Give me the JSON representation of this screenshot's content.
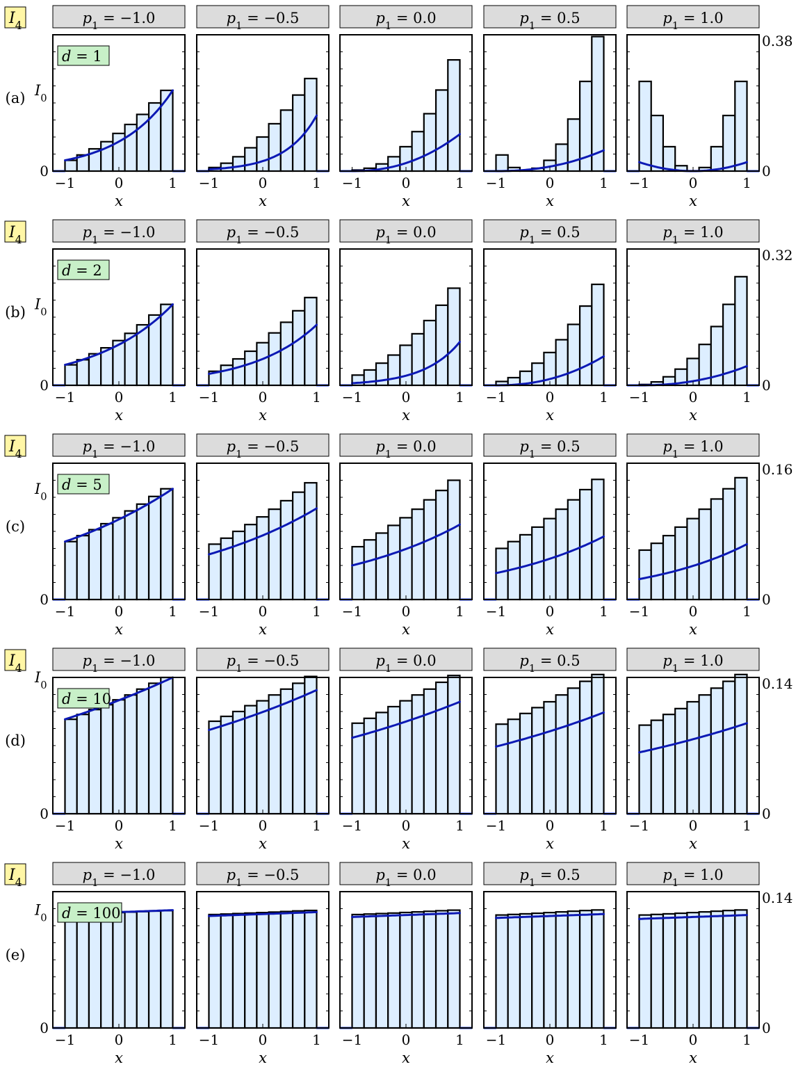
{
  "chart_data": {
    "type": "bar",
    "panel_tag": "I4",
    "strip_prefix": "p1",
    "columns": [
      {
        "p1": "−1.0"
      },
      {
        "p1": "−0.5"
      },
      {
        "p1": "0.0"
      },
      {
        "p1": "0.5"
      },
      {
        "p1": "1.0"
      }
    ],
    "xlabel": "x",
    "xticks": [
      "−1",
      "0",
      "1"
    ],
    "ylabel": "I0",
    "bin_centers": [
      -0.889,
      -0.667,
      -0.444,
      -0.222,
      0.0,
      0.222,
      0.444,
      0.667,
      0.889
    ],
    "rows": [
      {
        "label": "(a)",
        "d": "d = 1",
        "y_max_label": "0.38",
        "y_zero_label": "0",
        "ylim": [
          0,
          0.38
        ],
        "I0": 0.225,
        "bars": [
          [
            0.03,
            0.045,
            0.062,
            0.082,
            0.105,
            0.13,
            0.158,
            0.19,
            0.225
          ],
          [
            0.01,
            0.022,
            0.04,
            0.065,
            0.095,
            0.132,
            0.17,
            0.212,
            0.258
          ],
          [
            0.003,
            0.008,
            0.02,
            0.04,
            0.068,
            0.11,
            0.16,
            0.226,
            0.31
          ],
          [
            0.045,
            0.01,
            0.002,
            0.008,
            0.03,
            0.075,
            0.145,
            0.25,
            0.375
          ],
          [
            0.25,
            0.155,
            0.068,
            0.015,
            0.001,
            0.01,
            0.068,
            0.155,
            0.25
          ]
        ],
        "curves": [
          [
            0.03,
            0.225
          ],
          [
            0.005,
            0.155
          ],
          [
            0.0,
            0.103
          ],
          [
            0.0,
            0.058
          ],
          [
            0.025,
            0.025
          ]
        ]
      },
      {
        "label": "(b)",
        "d": "d = 2",
        "y_max_label": "0.32",
        "y_zero_label": "0",
        "ylim": [
          0,
          0.32
        ],
        "I0": 0.19,
        "bars": [
          [
            0.048,
            0.06,
            0.074,
            0.088,
            0.105,
            0.122,
            0.142,
            0.165,
            0.19
          ],
          [
            0.033,
            0.047,
            0.062,
            0.08,
            0.1,
            0.123,
            0.148,
            0.175,
            0.206
          ],
          [
            0.024,
            0.036,
            0.052,
            0.071,
            0.094,
            0.121,
            0.152,
            0.188,
            0.228
          ],
          [
            0.009,
            0.018,
            0.033,
            0.052,
            0.077,
            0.107,
            0.143,
            0.186,
            0.237
          ],
          [
            0.002,
            0.008,
            0.02,
            0.038,
            0.063,
            0.096,
            0.138,
            0.19,
            0.255
          ]
        ],
        "curves": [
          [
            0.048,
            0.19
          ],
          [
            0.027,
            0.142
          ],
          [
            0.005,
            0.102
          ],
          [
            0.0,
            0.068
          ],
          [
            0.0,
            0.045
          ]
        ]
      },
      {
        "label": "(c)",
        "d": "d = 5",
        "y_max_label": "0.16",
        "y_zero_label": "0",
        "ylim": [
          0,
          0.16
        ],
        "I0": 0.13,
        "bars": [
          [
            0.068,
            0.075,
            0.082,
            0.089,
            0.096,
            0.104,
            0.112,
            0.121,
            0.13
          ],
          [
            0.065,
            0.072,
            0.08,
            0.088,
            0.097,
            0.106,
            0.116,
            0.126,
            0.137
          ],
          [
            0.062,
            0.07,
            0.078,
            0.087,
            0.096,
            0.106,
            0.117,
            0.128,
            0.14
          ],
          [
            0.06,
            0.068,
            0.076,
            0.085,
            0.095,
            0.106,
            0.117,
            0.129,
            0.141
          ],
          [
            0.058,
            0.066,
            0.075,
            0.085,
            0.095,
            0.106,
            0.118,
            0.13,
            0.143
          ]
        ],
        "curves": [
          [
            0.068,
            0.13
          ],
          [
            0.053,
            0.107
          ],
          [
            0.04,
            0.088
          ],
          [
            0.031,
            0.074
          ],
          [
            0.024,
            0.065
          ]
        ]
      },
      {
        "label": "(d)",
        "d": "d = 10",
        "y_max_label": "0.14",
        "y_zero_label": "0",
        "ylim": [
          0,
          0.14
        ],
        "I0": 0.14,
        "bars": [
          [
            0.097,
            0.102,
            0.107,
            0.112,
            0.117,
            0.122,
            0.128,
            0.134,
            0.14
          ],
          [
            0.095,
            0.1,
            0.105,
            0.111,
            0.116,
            0.122,
            0.128,
            0.134,
            0.141
          ],
          [
            0.093,
            0.098,
            0.104,
            0.11,
            0.116,
            0.122,
            0.128,
            0.135,
            0.142
          ],
          [
            0.092,
            0.097,
            0.103,
            0.109,
            0.115,
            0.122,
            0.129,
            0.136,
            0.143
          ],
          [
            0.091,
            0.096,
            0.102,
            0.108,
            0.115,
            0.122,
            0.129,
            0.136,
            0.143
          ]
        ],
        "curves": [
          [
            0.097,
            0.14
          ],
          [
            0.086,
            0.127
          ],
          [
            0.078,
            0.115
          ],
          [
            0.069,
            0.104
          ],
          [
            0.063,
            0.093
          ]
        ]
      },
      {
        "label": "(e)",
        "d": "d = 100",
        "y_max_label": "0.14",
        "y_zero_label": "0",
        "ylim": [
          0,
          0.14
        ],
        "I0": 0.121,
        "bars": [
          [
            0.1165,
            0.117,
            0.1175,
            0.118,
            0.1185,
            0.119,
            0.1195,
            0.12,
            0.1205
          ],
          [
            0.1165,
            0.117,
            0.1175,
            0.118,
            0.1185,
            0.119,
            0.1196,
            0.1202,
            0.1207
          ],
          [
            0.1165,
            0.117,
            0.1175,
            0.118,
            0.1186,
            0.1192,
            0.1198,
            0.1204,
            0.121
          ],
          [
            0.116,
            0.1166,
            0.1172,
            0.1178,
            0.1185,
            0.1192,
            0.1199,
            0.1206,
            0.1212
          ],
          [
            0.116,
            0.1166,
            0.1172,
            0.1178,
            0.1185,
            0.1192,
            0.1199,
            0.1206,
            0.1212
          ]
        ],
        "curves": [
          [
            0.117,
            0.121
          ],
          [
            0.115,
            0.119
          ],
          [
            0.114,
            0.118
          ],
          [
            0.113,
            0.117
          ],
          [
            0.112,
            0.116
          ]
        ]
      }
    ]
  }
}
